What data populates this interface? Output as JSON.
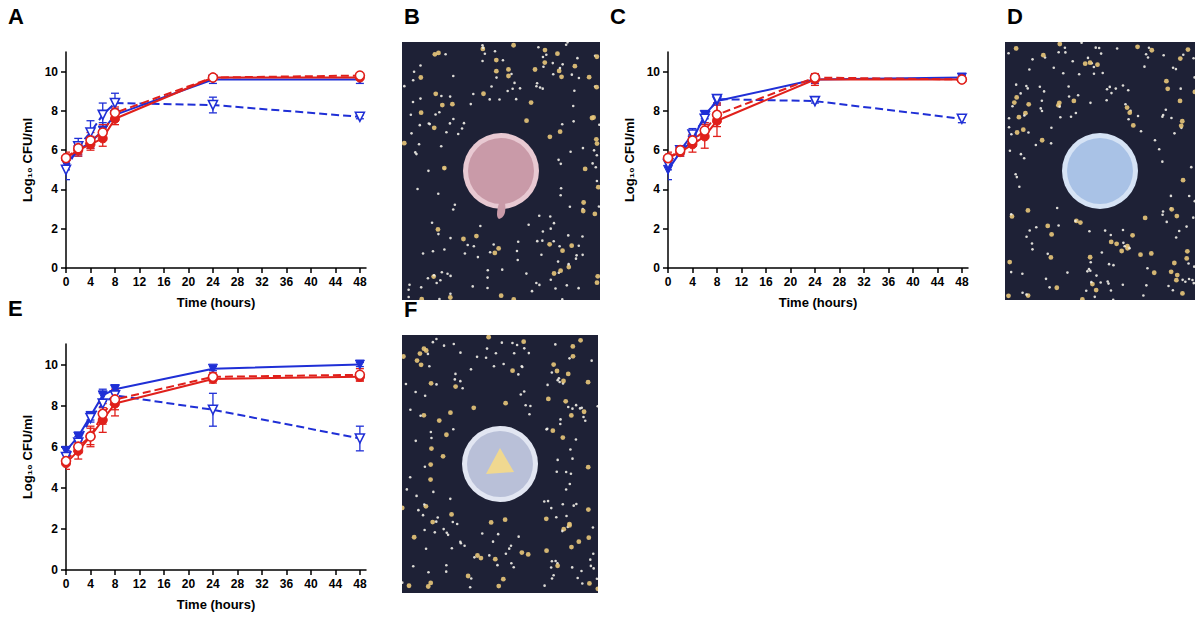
{
  "chart_data": [
    {
      "type": "line",
      "panel_label": "A",
      "x_label": "Time (hours)",
      "y_label": "Log₁₀ CFU/ml",
      "x": [
        0,
        2,
        4,
        6,
        8,
        24,
        48
      ],
      "xlim": [
        0,
        49
      ],
      "xticks": [
        0,
        4,
        8,
        12,
        16,
        20,
        24,
        28,
        32,
        36,
        40,
        44,
        48
      ],
      "ylim": [
        0,
        11
      ],
      "yticks": [
        0,
        2,
        4,
        6,
        8,
        10
      ],
      "grid": false,
      "series": [
        {
          "color": "#1f2fd6",
          "line_style": "solid",
          "marker": "filled_triangle_down",
          "values": [
            5.3,
            6.0,
            6.4,
            7.0,
            7.8,
            9.6,
            9.6
          ],
          "errors": [
            0.3,
            0.3,
            0.3,
            0.4,
            0.3,
            0.2,
            0.2
          ]
        },
        {
          "color": "#1f2fd6",
          "line_style": "dashed",
          "marker": "open_triangle_down",
          "values": [
            5.0,
            6.2,
            6.9,
            7.8,
            8.4,
            8.3,
            7.7
          ],
          "errors": [
            0.5,
            0.4,
            0.6,
            0.6,
            0.5,
            0.4,
            0.1
          ]
        },
        {
          "color": "#e0201b",
          "line_style": "solid",
          "marker": "filled_circle",
          "values": [
            5.6,
            6.0,
            6.3,
            6.6,
            7.6,
            9.7,
            9.7
          ],
          "errors": [
            0.3,
            0.3,
            0.3,
            0.4,
            0.3,
            0.1,
            0.1
          ]
        },
        {
          "color": "#e0201b",
          "line_style": "dashed",
          "marker": "open_circle",
          "values": [
            5.6,
            6.1,
            6.5,
            6.9,
            7.9,
            9.7,
            9.8
          ],
          "errors": [
            0.2,
            0.3,
            0.4,
            0.4,
            0.3,
            0.1,
            0.1
          ]
        }
      ]
    },
    {
      "type": "line",
      "panel_label": "C",
      "x_label": "Time (hours)",
      "y_label": "Log₁₀ CFU/ml",
      "x": [
        0,
        2,
        4,
        6,
        8,
        24,
        48
      ],
      "xlim": [
        0,
        49
      ],
      "xticks": [
        0,
        4,
        8,
        12,
        16,
        20,
        24,
        28,
        32,
        36,
        40,
        44,
        48
      ],
      "ylim": [
        0,
        11
      ],
      "yticks": [
        0,
        2,
        4,
        6,
        8,
        10
      ],
      "grid": false,
      "series": [
        {
          "color": "#1f2fd6",
          "line_style": "solid",
          "marker": "filled_triangle_down",
          "values": [
            5.0,
            5.9,
            6.5,
            7.8,
            8.5,
            9.6,
            9.7
          ],
          "errors": [
            0.5,
            0.2,
            0.3,
            0.2,
            0.2,
            0.2,
            0.1
          ]
        },
        {
          "color": "#1f2fd6",
          "line_style": "dashed",
          "marker": "open_triangle_down",
          "values": [
            5.3,
            6.0,
            6.8,
            7.6,
            8.6,
            8.5,
            7.6
          ],
          "errors": [
            0.3,
            0.2,
            0.3,
            0.2,
            0.2,
            0.1,
            0.2
          ]
        },
        {
          "color": "#e0201b",
          "line_style": "solid",
          "marker": "filled_circle",
          "values": [
            5.6,
            5.9,
            6.3,
            6.7,
            7.5,
            9.6,
            9.6
          ],
          "errors": [
            0.3,
            0.2,
            0.4,
            0.6,
            0.8,
            0.3,
            0.1
          ]
        },
        {
          "color": "#e0201b",
          "line_style": "dashed",
          "marker": "open_circle",
          "values": [
            5.6,
            6.0,
            6.5,
            7.0,
            7.8,
            9.7,
            9.6
          ],
          "errors": [
            0.2,
            0.2,
            0.3,
            0.4,
            0.6,
            0.1,
            0.1
          ]
        }
      ]
    },
    {
      "type": "line",
      "panel_label": "E",
      "x_label": "Time (hours)",
      "y_label": "Log₁₀ CFU/ml",
      "x": [
        0,
        2,
        4,
        6,
        8,
        24,
        48
      ],
      "xlim": [
        0,
        49
      ],
      "xticks": [
        0,
        4,
        8,
        12,
        16,
        20,
        24,
        28,
        32,
        36,
        40,
        44,
        48
      ],
      "ylim": [
        0,
        11
      ],
      "yticks": [
        0,
        2,
        4,
        6,
        8,
        10
      ],
      "grid": false,
      "series": [
        {
          "color": "#1f2fd6",
          "line_style": "solid",
          "marker": "filled_triangle_down",
          "values": [
            5.8,
            6.5,
            7.5,
            8.5,
            8.8,
            9.8,
            10.0
          ],
          "errors": [
            0.2,
            0.2,
            0.2,
            0.3,
            0.2,
            0.1,
            0.1
          ]
        },
        {
          "color": "#1f2fd6",
          "line_style": "dashed",
          "marker": "open_triangle_down",
          "values": [
            5.5,
            6.2,
            7.4,
            8.1,
            8.5,
            7.8,
            6.4
          ],
          "errors": [
            0.3,
            0.3,
            0.2,
            0.5,
            0.5,
            0.8,
            0.6
          ]
        },
        {
          "color": "#e0201b",
          "line_style": "solid",
          "marker": "filled_circle",
          "values": [
            5.2,
            5.8,
            6.5,
            7.3,
            8.1,
            9.3,
            9.4
          ],
          "errors": [
            0.3,
            0.4,
            0.5,
            0.6,
            0.6,
            0.2,
            0.2
          ]
        },
        {
          "color": "#e0201b",
          "line_style": "dashed",
          "marker": "open_circle",
          "values": [
            5.3,
            6.0,
            6.5,
            7.6,
            8.3,
            9.4,
            9.5
          ],
          "errors": [
            0.2,
            0.3,
            0.4,
            0.5,
            0.5,
            0.2,
            0.3
          ]
        }
      ]
    }
  ],
  "images": [
    {
      "panel_label": "B"
    },
    {
      "panel_label": "D"
    },
    {
      "panel_label": "F"
    }
  ]
}
